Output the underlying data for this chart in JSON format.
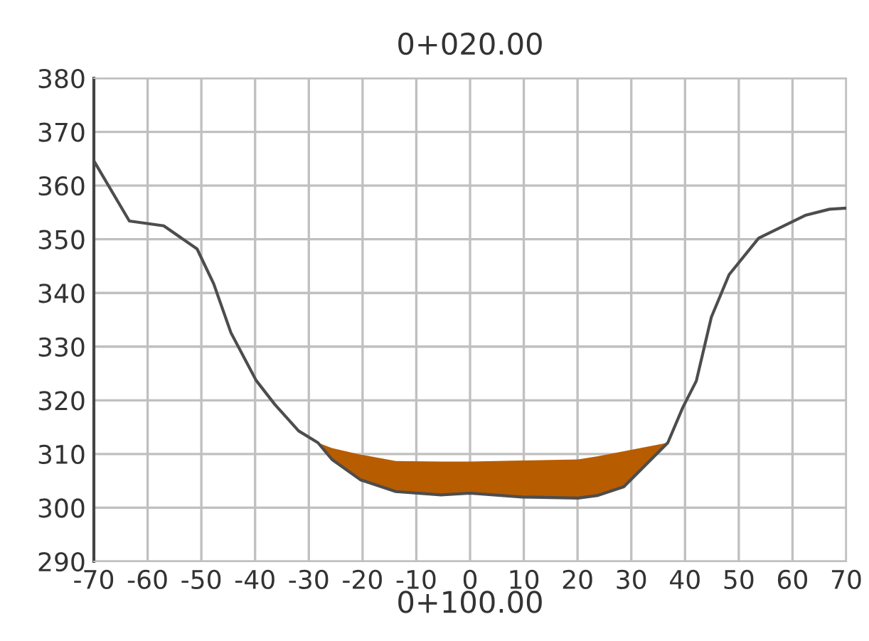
{
  "chart_data": {
    "type": "line",
    "title": "0+020.00",
    "xlabel": "0+100.00",
    "xlim": [
      -70,
      70
    ],
    "xticks": [
      -70,
      -60,
      -50,
      -40,
      -30,
      -20,
      -10,
      0,
      10,
      20,
      30,
      40,
      50,
      60,
      70
    ],
    "ylim": [
      290,
      380
    ],
    "yticks": [
      290,
      300,
      310,
      320,
      330,
      340,
      350,
      360,
      370,
      380
    ],
    "grid": true,
    "legend": false,
    "marker": "none",
    "line_style": "solid",
    "series": [
      {
        "type": "area",
        "color": "#b85c00",
        "x": [
          -28.3,
          -25.7,
          -20.4,
          -13.8,
          -5.4,
          0,
          9.7,
          20.1,
          23.8,
          28.6,
          36.8
        ],
        "values": [
          312.1,
          311.1,
          309.9,
          308.7,
          308.6,
          308.6,
          308.8,
          309.0,
          309.6,
          310.5,
          312.1
        ]
      },
      {
        "color": "#4d4d4d",
        "x": [
          -70,
          -63.4,
          -57,
          -50.8,
          -47.7,
          -44.5,
          -39.8,
          -36.3,
          -31.9,
          -28.3,
          -25.7,
          -20.4,
          -13.8,
          -5.4,
          0,
          9.7,
          20.1,
          23.8,
          28.6,
          36.8,
          39.6,
          42.1,
          44.9,
          48.2,
          53.7,
          62.5,
          66.9,
          70
        ],
        "values": [
          364.6,
          353.4,
          352.5,
          348.2,
          341.7,
          332.6,
          323.7,
          319.2,
          314.3,
          312.1,
          309.0,
          305.2,
          303.0,
          302.4,
          302.7,
          302.0,
          301.8,
          302.3,
          303.9,
          312.1,
          318.7,
          323.6,
          335.5,
          343.4,
          350.2,
          354.5,
          355.6,
          355.8
        ]
      }
    ]
  }
}
